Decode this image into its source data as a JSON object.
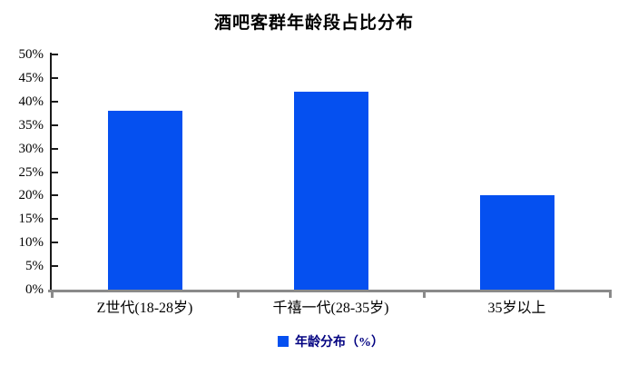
{
  "chart_data": {
    "type": "bar",
    "title": "酒吧客群年龄段占比分布",
    "categories": [
      "Z世代(18-28岁)",
      "千禧一代(28-35岁)",
      "35岁以上"
    ],
    "values": [
      38,
      42,
      20
    ],
    "series_name": "年龄分布（%）",
    "ylim": [
      0,
      50
    ],
    "ytick_step": 5,
    "ytick_suffix": "%",
    "grid": false,
    "legend_position": "bottom",
    "colors": {
      "bar": "#0550F0",
      "legend_text": "#000080",
      "y_axis_line": "#1a1a1a",
      "x_axis_line": "#8a8a8a",
      "text": "#000000"
    }
  }
}
